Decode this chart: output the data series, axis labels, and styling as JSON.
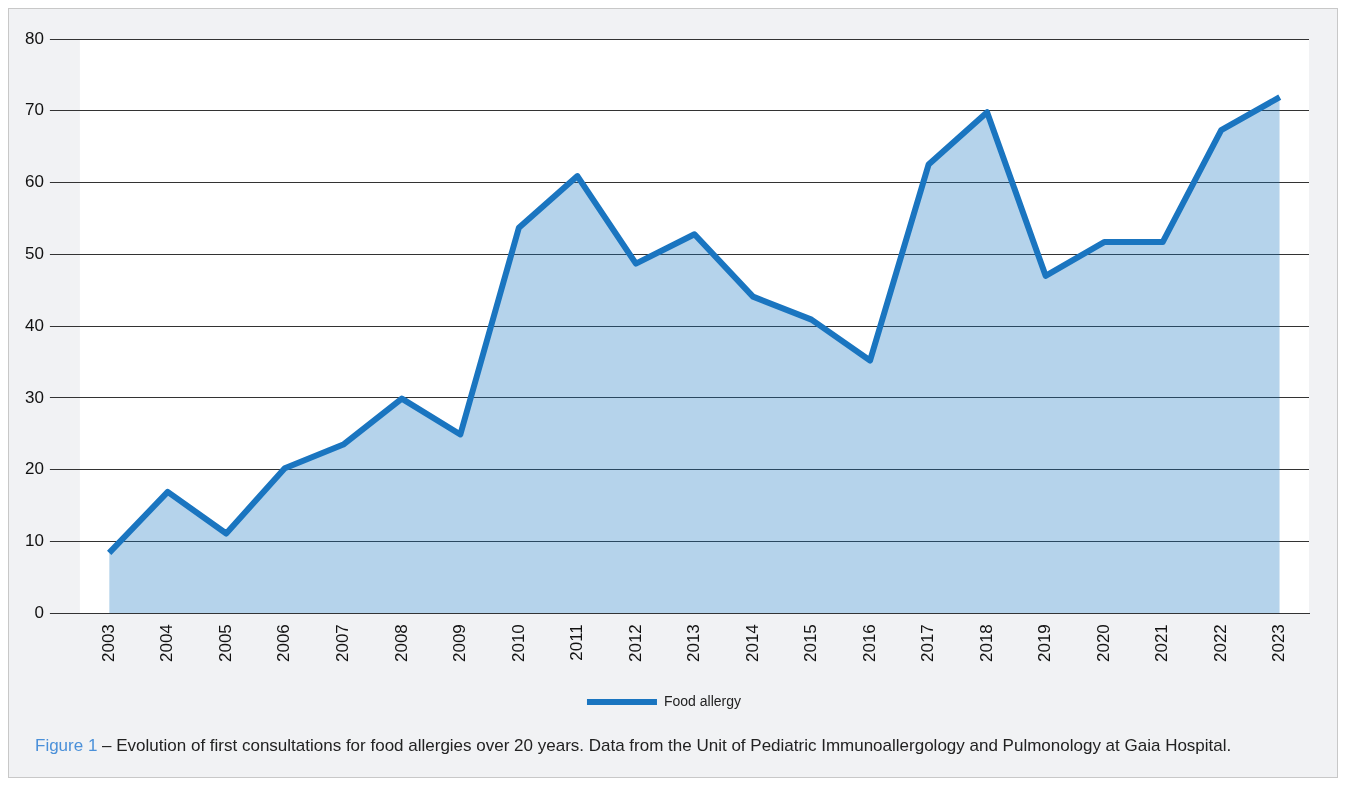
{
  "chart_data": {
    "type": "area",
    "categories": [
      "2003",
      "2004",
      "2005",
      "2006",
      "2007",
      "2008",
      "2009",
      "2010",
      "2011",
      "2012",
      "2013",
      "2014",
      "2015",
      "2016",
      "2017",
      "2018",
      "2019",
      "2020",
      "2021",
      "2022",
      "2023"
    ],
    "series": [
      {
        "name": "Food allergy",
        "color": "#1a75c0",
        "values": [
          8.4,
          16.9,
          11.1,
          20.2,
          23.5,
          29.9,
          24.9,
          53.7,
          60.9,
          48.7,
          52.8,
          44.1,
          40.9,
          35.2,
          62.5,
          69.8,
          47.0,
          51.7,
          51.7,
          67.3,
          71.9
        ]
      }
    ],
    "ylim": [
      0,
      80
    ],
    "yticks": [
      0,
      10,
      20,
      30,
      40,
      50,
      60,
      70,
      80
    ],
    "grid": "y",
    "legend": "bottom",
    "marker": "none",
    "line_style": "solid",
    "annotations": [
      "Figure 1",
      "– Evolution of first consultations for food allergies over 20 years. Data from the Unit of Pediatric Immunoallergology and Pulmonology at Gaia Hospital."
    ]
  }
}
